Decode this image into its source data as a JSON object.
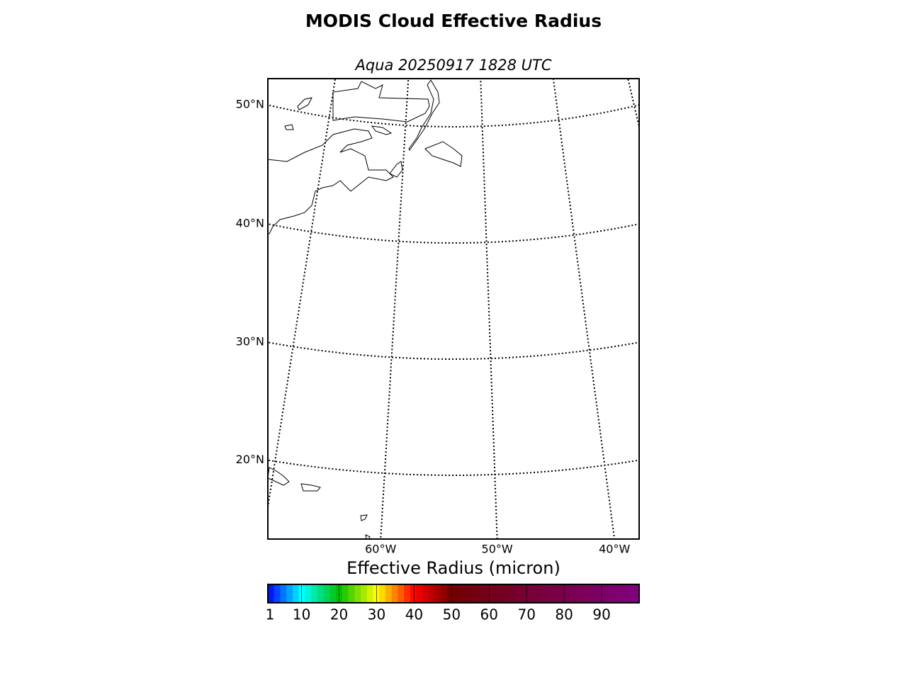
{
  "title": "MODIS Cloud Effective Radius",
  "subtitle": "Aqua 20250917 1828 UTC",
  "map": {
    "parallels": [
      {
        "value": 50,
        "label": "50°N"
      },
      {
        "value": 40,
        "label": "40°N"
      },
      {
        "value": 30,
        "label": "30°N"
      },
      {
        "value": 20,
        "label": "20°N"
      }
    ],
    "meridians": [
      {
        "value": -60,
        "label": "60°W"
      },
      {
        "value": -50,
        "label": "50°W"
      },
      {
        "value": -40,
        "label": "40°W"
      }
    ],
    "unlabeled_meridians": [
      -70,
      -30
    ]
  },
  "colorbar": {
    "label": "Effective Radius (micron)",
    "lim": [
      1,
      100
    ],
    "ticks": [
      1,
      10,
      20,
      30,
      40,
      50,
      60,
      70,
      80,
      90
    ],
    "stops": [
      [
        1,
        "#0000ff"
      ],
      [
        10,
        "#00ffff"
      ],
      [
        20,
        "#00c000"
      ],
      [
        30,
        "#ffff00"
      ],
      [
        40,
        "#ff0000"
      ],
      [
        50,
        "#700000"
      ],
      [
        100,
        "#800080"
      ]
    ]
  }
}
